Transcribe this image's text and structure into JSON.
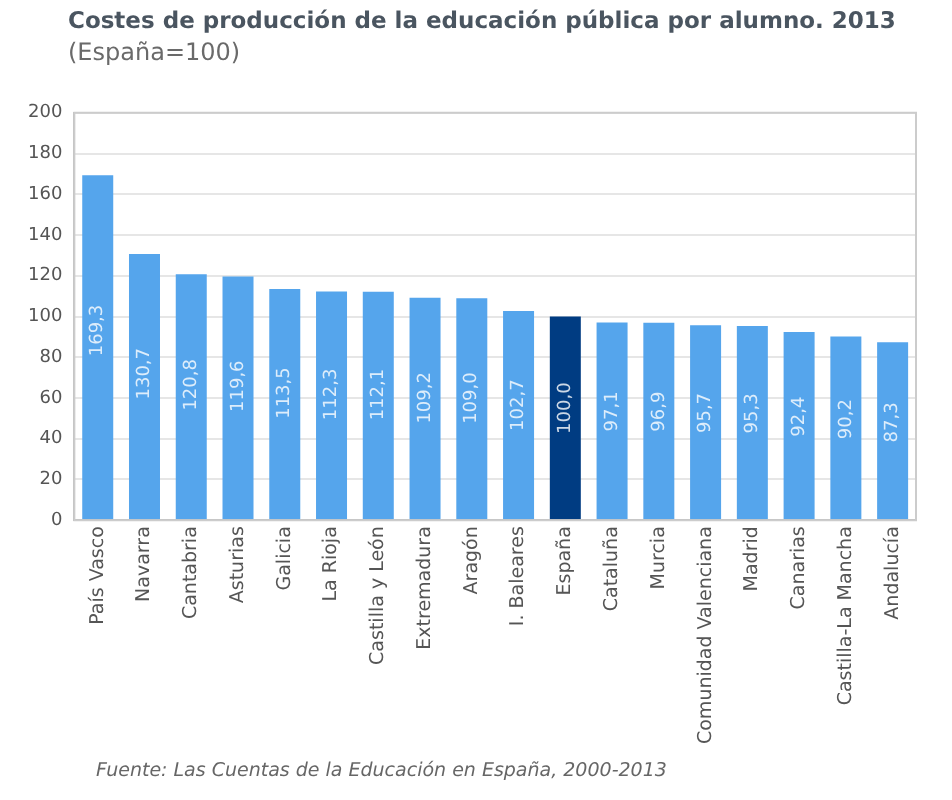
{
  "chart_data": {
    "type": "bar",
    "title": "Costes de producción de la educación pública por alumno. 2013",
    "subtitle": "(España=100)",
    "categories": [
      "País Vasco",
      "Navarra",
      "Cantabria",
      "Asturias",
      "Galicia",
      "La Rioja",
      "Castilla y León",
      "Extremadura",
      "Aragón",
      "I. Baleares",
      "España",
      "Cataluña",
      "Murcia",
      "Comunidad Valenciana",
      "Madrid",
      "Canarias",
      "Castilla-La Mancha",
      "Andalucía"
    ],
    "values": [
      169.3,
      130.7,
      120.8,
      119.6,
      113.5,
      112.3,
      112.1,
      109.2,
      109.0,
      102.7,
      100.0,
      97.1,
      96.9,
      95.7,
      95.3,
      92.4,
      90.2,
      87.3
    ],
    "value_labels": [
      "169,3",
      "130,7",
      "120,8",
      "119,6",
      "113,5",
      "112,3",
      "112,1",
      "109,2",
      "109,0",
      "102,7",
      "100,0",
      "97,1",
      "96,9",
      "95,7",
      "95,3",
      "92,4",
      "90,2",
      "87,3"
    ],
    "colors": [
      "#55a5ec",
      "#55a5ec",
      "#55a5ec",
      "#55a5ec",
      "#55a5ec",
      "#55a5ec",
      "#55a5ec",
      "#55a5ec",
      "#55a5ec",
      "#55a5ec",
      "#003c82",
      "#55a5ec",
      "#55a5ec",
      "#55a5ec",
      "#55a5ec",
      "#55a5ec",
      "#55a5ec",
      "#55a5ec"
    ],
    "ylim": [
      0,
      200
    ],
    "yticks": [
      0,
      20,
      40,
      60,
      80,
      100,
      120,
      140,
      160,
      180,
      200
    ],
    "grid": "y",
    "legend": false,
    "annotations": [
      "Fuente: Las Cuentas de la Educación en España, 2000-2013"
    ]
  }
}
